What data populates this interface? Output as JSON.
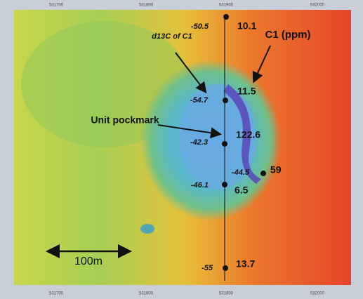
{
  "map": {
    "labels": {
      "d13c_title": "d13C of C1",
      "ppm_title": "C1 (ppm)",
      "pockmark": "Unit pockmark",
      "scale": "100m"
    },
    "top_ticks": [
      "531700",
      "531800",
      "531900",
      "532000"
    ],
    "bottom_ticks": [
      "531700",
      "531800",
      "531900",
      "532000"
    ],
    "points": [
      {
        "d13c": "-50.5",
        "ppm": "10.1"
      },
      {
        "d13c": "-54.7",
        "ppm": "11.5"
      },
      {
        "d13c": "-42.3",
        "ppm": "122.6"
      },
      {
        "d13c": "-44.5",
        "ppm": "59"
      },
      {
        "d13c": "-46.1",
        "ppm": "6.5"
      },
      {
        "d13c": "-55",
        "ppm": "13.7"
      }
    ]
  }
}
